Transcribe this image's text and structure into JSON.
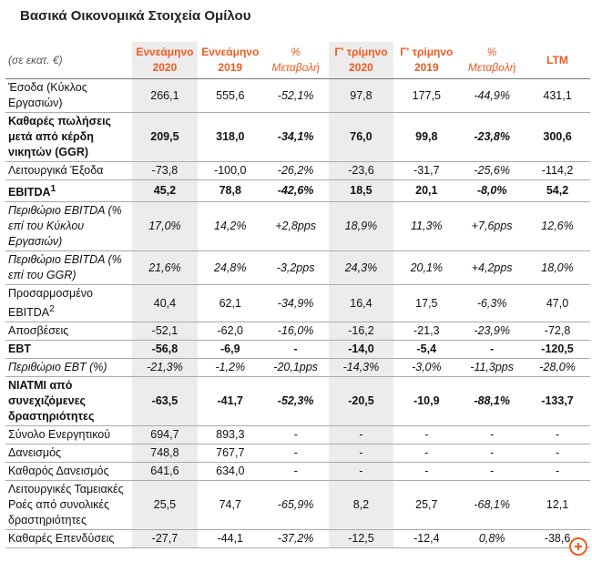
{
  "header": {
    "title": "Βασικά Οικονομικά Στοιχεία Ομίλου",
    "unit": "(σε εκατ. €)",
    "columns": [
      "Εννεάμηνο 2020",
      "Εννεάμηνο 2019",
      "% Μεταβολή",
      "Γ' τρίμηνο 2020",
      "Γ' τρίμηνο 2019",
      "% Μεταβολή",
      "LTM"
    ]
  },
  "table": {
    "rows": [
      {
        "label": "Έσοδα (Κύκλος Εργασιών)",
        "style": "normal",
        "values": [
          "266,1",
          "555,6",
          "-52,1%",
          "97,8",
          "177,5",
          "-44,9%",
          "431,1"
        ]
      },
      {
        "label": "Καθαρές πωλήσεις μετά από κέρδη νικητών (GGR)",
        "style": "bold",
        "values": [
          "209,5",
          "318,0",
          "-34,1%",
          "76,0",
          "99,8",
          "-23,8%",
          "300,6"
        ]
      },
      {
        "label": "Λειτουργικά Έξοδα",
        "style": "normal",
        "values": [
          "-73,8",
          "-100,0",
          "-26,2%",
          "-23,6",
          "-31,7",
          "-25,6%",
          "-114,2"
        ]
      },
      {
        "label": "EBITDA",
        "note": "1",
        "style": "bold",
        "values": [
          "45,2",
          "78,8",
          "-42,6%",
          "18,5",
          "20,1",
          "-8,0%",
          "54,2"
        ]
      },
      {
        "label": "Περιθώριο EBITDA (% επί του Κύκλου Εργασιών)",
        "style": "italic",
        "values": [
          "17,0%",
          "14,2%",
          "+2,8pps",
          "18,9%",
          "11,3%",
          "+7,6pps",
          "12,6%"
        ]
      },
      {
        "label": "Περιθώριο EBITDA (% επί του GGR)",
        "style": "italic",
        "values": [
          "21,6%",
          "24,8%",
          "-3,2pps",
          "24,3%",
          "20,1%",
          "+4,2pps",
          "18,0%"
        ]
      },
      {
        "label": "Προσαρμοσμένο EBITDA",
        "note": "2",
        "style": "normal",
        "values": [
          "40,4",
          "62,1",
          "-34,9%",
          "16,4",
          "17,5",
          "-6,3%",
          "47,0"
        ]
      },
      {
        "label": "Αποσβέσεις",
        "style": "normal",
        "values": [
          "-52,1",
          "-62,0",
          "-16,0%",
          "-16,2",
          "-21,3",
          "-23,9%",
          "-72,8"
        ]
      },
      {
        "label": "EBT",
        "style": "bold",
        "values": [
          "-56,8",
          "-6,9",
          "-",
          "-14,0",
          "-5,4",
          "-",
          "-120,5"
        ]
      },
      {
        "label": "Περιθώριο EBT (%)",
        "style": "italic",
        "values": [
          "-21,3%",
          "-1,2%",
          "-20,1pps",
          "-14,3%",
          "-3,0%",
          "-11,3pps",
          "-28,0%"
        ]
      },
      {
        "label": "ΝΙΑΤΜΙ από συνεχιζόμενες δραστηριότητες",
        "style": "bold",
        "values": [
          "-63,5",
          "-41,7",
          "-52,3%",
          "-20,5",
          "-10,9",
          "-88,1%",
          "-133,7"
        ]
      },
      {
        "label": "Σύνολο Ενεργητικού",
        "style": "normal",
        "values": [
          "694,7",
          "893,3",
          "-",
          "-",
          "-",
          "-",
          "-"
        ]
      },
      {
        "label": "Δανεισμός",
        "style": "normal",
        "values": [
          "748,8",
          "767,7",
          "-",
          "-",
          "-",
          "-",
          "-"
        ]
      },
      {
        "label": "Καθαρός Δανεισμός",
        "style": "normal",
        "values": [
          "641,6",
          "634,0",
          "-",
          "-",
          "-",
          "-",
          "-"
        ]
      },
      {
        "label": "Λειτουργικές Ταμειακές Ροές από συνολικές δραστηριότητες",
        "style": "normal",
        "values": [
          "25,5",
          "74,7",
          "-65,9%",
          "8,2",
          "25,7",
          "-68,1%",
          "12,1"
        ]
      },
      {
        "label": "Καθαρές Επενδύσεις",
        "style": "normal",
        "values": [
          "-27,7",
          "-44,1",
          "-37,2%",
          "-12,5",
          "-12,4",
          "0,8%",
          "-38,6"
        ]
      }
    ]
  }
}
